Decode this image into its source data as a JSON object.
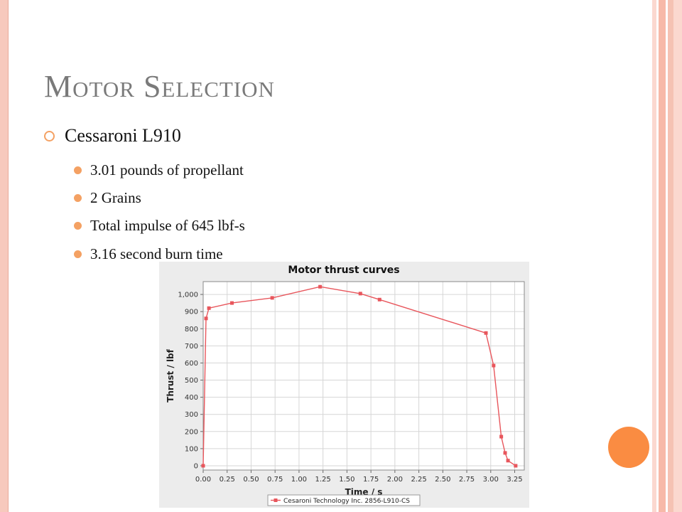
{
  "slide": {
    "title": "Motor Selection",
    "bullet_main": "Cessaroni L910",
    "bullets": [
      "3.01 pounds of propellant",
      "2 Grains",
      "Total impulse of 645 lbf-s",
      "3.16 second burn time"
    ]
  },
  "colors": {
    "accent": "#f4a163",
    "series": "#e8565c",
    "title": "#7a7a7a"
  },
  "chart_data": {
    "type": "line",
    "title": "Motor thrust curves",
    "xlabel": "Time / s",
    "ylabel": "Thrust / lbf",
    "xlim": [
      0,
      3.35
    ],
    "ylim": [
      -25,
      1075
    ],
    "x_ticks": [
      "0.00",
      "0.25",
      "0.50",
      "0.75",
      "1.00",
      "1.25",
      "1.50",
      "1.75",
      "2.00",
      "2.25",
      "2.50",
      "2.75",
      "3.00",
      "3.25"
    ],
    "y_ticks": [
      "0",
      "100",
      "200",
      "300",
      "400",
      "500",
      "600",
      "700",
      "800",
      "900",
      "1,000"
    ],
    "grid": true,
    "legend_position": "bottom",
    "series": [
      {
        "name": "Cesaroni Technology Inc. 2856-L910-CS",
        "x": [
          0.0,
          0.03,
          0.06,
          0.3,
          0.72,
          1.22,
          1.64,
          1.84,
          2.95,
          3.03,
          3.11,
          3.15,
          3.18,
          3.26
        ],
        "y": [
          0,
          860,
          920,
          950,
          980,
          1045,
          1005,
          970,
          775,
          585,
          170,
          75,
          30,
          0
        ]
      }
    ]
  }
}
